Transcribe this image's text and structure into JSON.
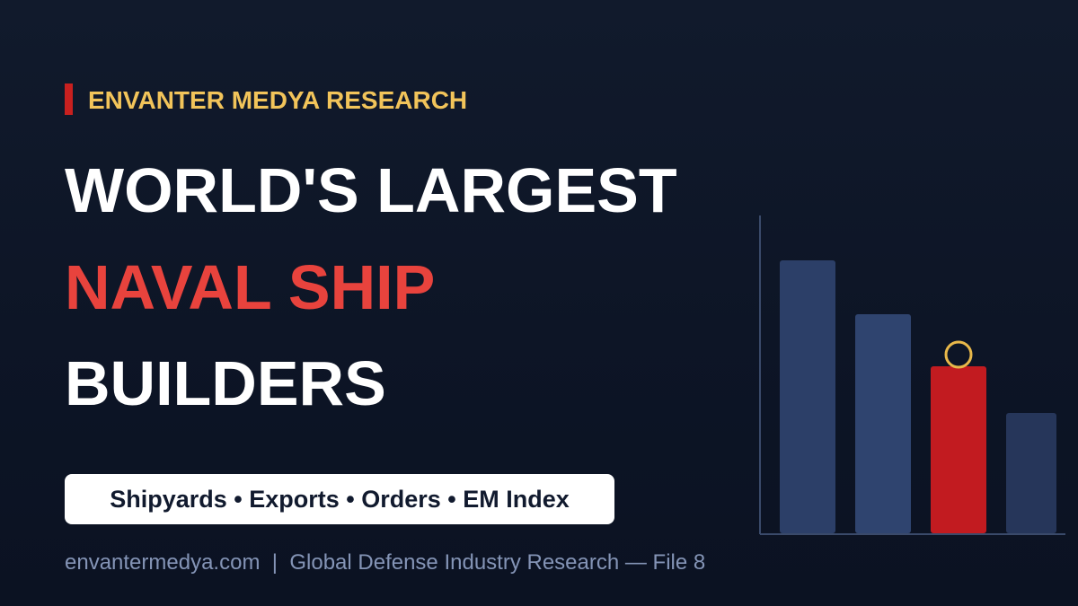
{
  "header": {
    "kicker": "ENVANTER MEDYA RESEARCH",
    "title_lines": [
      "WORLD'S LARGEST",
      "NAVAL SHIP",
      "BUILDERS"
    ]
  },
  "tags": "Shipyards • Exports • Orders • EM Index",
  "footer": "envantermedya.com  |  Global Defense Industry Research — File 8"
}
